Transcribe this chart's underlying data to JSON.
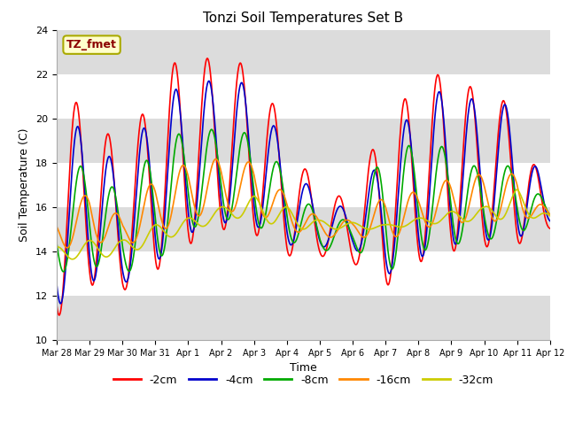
{
  "title": "Tonzi Soil Temperatures Set B",
  "xlabel": "Time",
  "ylabel": "Soil Temperature (C)",
  "annotation": "TZ_fmet",
  "annotation_color": "#8B0000",
  "annotation_bg": "#FFFFCC",
  "annotation_border": "#AAAA00",
  "ylim": [
    10,
    24
  ],
  "xlim": [
    0,
    360
  ],
  "plot_bg": "#FFFFFF",
  "band_color": "#DCDCDC",
  "grid_color": "#DCDCDC",
  "series_colors": [
    "#FF0000",
    "#0000CC",
    "#00AA00",
    "#FF8800",
    "#CCCC00"
  ],
  "series_labels": [
    "-2cm",
    "-4cm",
    "-8cm",
    "-16cm",
    "-32cm"
  ],
  "x_tick_labels": [
    "Mar 28",
    "Mar 29",
    "Mar 30",
    "Mar 31",
    "Apr 1",
    "Apr 2",
    "Apr 3",
    "Apr 4",
    "Apr 5",
    "Apr 6",
    "Apr 7",
    "Apr 8",
    "Apr 9",
    "Apr 10",
    "Apr 11",
    "Apr 12"
  ],
  "x_tick_positions": [
    0,
    24,
    48,
    72,
    96,
    120,
    144,
    168,
    192,
    216,
    240,
    264,
    288,
    312,
    336,
    360
  ],
  "yticks": [
    10,
    12,
    14,
    16,
    18,
    20,
    22,
    24
  ]
}
